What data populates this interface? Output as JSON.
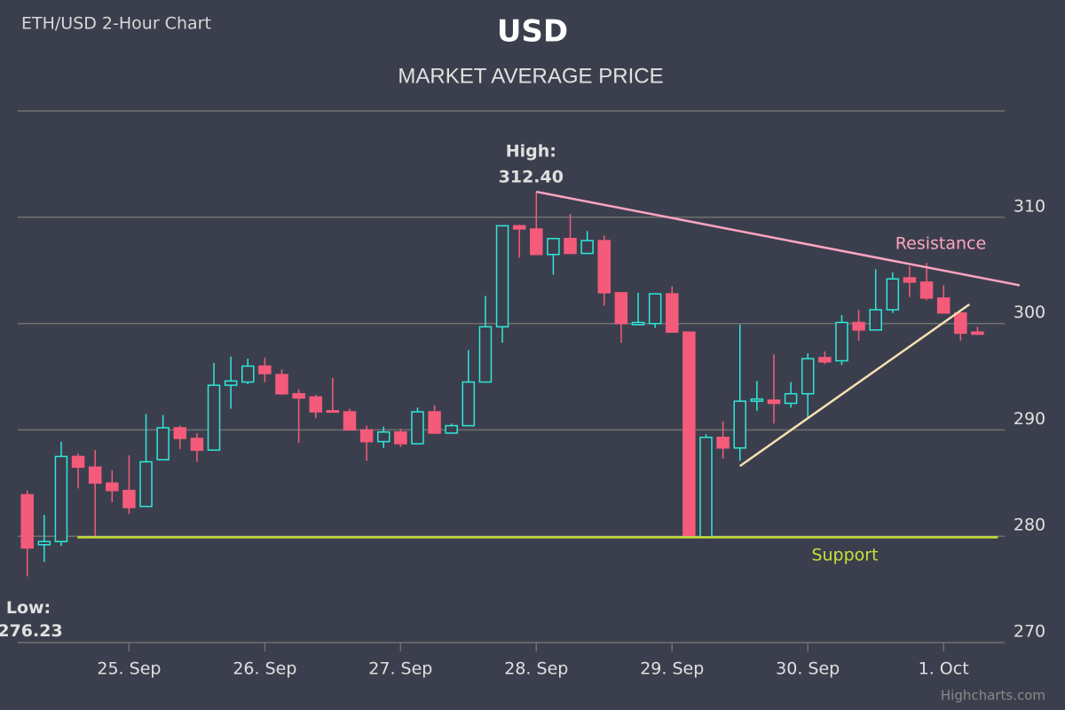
{
  "chart_data": {
    "type": "candlestick",
    "caption": "ETH/USD 2-Hour Chart",
    "title": "USD",
    "subtitle": "MARKET AVERAGE PRICE",
    "credits": "Highcharts.com",
    "up_color": "#2ee8d8",
    "down_color": "#f45b7a",
    "xlim": [
      24.18,
      31.45
    ],
    "xticks": [
      {
        "value": 25,
        "label": "25. Sep"
      },
      {
        "value": 26,
        "label": "26. Sep"
      },
      {
        "value": 27,
        "label": "27. Sep"
      },
      {
        "value": 28,
        "label": "28. Sep"
      },
      {
        "value": 29,
        "label": "29. Sep"
      },
      {
        "value": 30,
        "label": "30. Sep"
      },
      {
        "value": 31,
        "label": "1. Oct"
      }
    ],
    "ylim": [
      270,
      320
    ],
    "yticks": [
      270,
      280,
      290,
      300,
      310
    ],
    "grid": true,
    "x": [
      24.25,
      24.375,
      24.5,
      24.625,
      24.75,
      24.875,
      25,
      25.125,
      25.25,
      25.375,
      25.5,
      25.625,
      25.75,
      25.875,
      26,
      26.125,
      26.25,
      26.375,
      26.5,
      26.625,
      26.75,
      26.875,
      27,
      27.125,
      27.25,
      27.375,
      27.5,
      27.625,
      27.75,
      27.875,
      28,
      28.125,
      28.25,
      28.375,
      28.5,
      28.625,
      28.75,
      28.875,
      29,
      29.125,
      29.25,
      29.375,
      29.5,
      29.625,
      29.75,
      29.875,
      30,
      30.125,
      30.25,
      30.375,
      30.5,
      30.625,
      30.75,
      30.875,
      31,
      31.125,
      31.25
    ],
    "open": [
      283.9,
      279.2,
      279.5,
      287.5,
      286.5,
      285.0,
      284.3,
      282.8,
      287.2,
      290.2,
      289.2,
      288.1,
      294.2,
      294.5,
      296.0,
      295.2,
      293.4,
      293.1,
      291.8,
      291.7,
      290.0,
      288.9,
      289.8,
      288.7,
      291.7,
      289.7,
      290.4,
      294.5,
      299.7,
      309.2,
      308.9,
      306.5,
      308.0,
      306.6,
      307.8,
      302.9,
      299.9,
      300.0,
      302.8,
      299.2,
      279.9,
      289.3,
      288.3,
      292.7,
      292.8,
      292.5,
      293.4,
      296.8,
      296.5,
      300.1,
      299.4,
      301.3,
      304.3,
      303.9,
      302.4,
      301.0,
      299.2
    ],
    "high": [
      284.3,
      282.0,
      288.9,
      287.8,
      288.1,
      286.2,
      287.6,
      291.5,
      291.4,
      290.4,
      289.7,
      296.3,
      296.9,
      296.7,
      296.8,
      295.7,
      293.8,
      293.3,
      294.9,
      292.0,
      290.4,
      290.3,
      290.1,
      292.1,
      292.3,
      290.6,
      297.5,
      302.6,
      309.2,
      309.3,
      312.4,
      308.0,
      310.3,
      308.7,
      308.3,
      302.9,
      302.9,
      302.8,
      303.5,
      299.2,
      289.6,
      290.8,
      299.9,
      294.6,
      297.1,
      294.5,
      297.2,
      297.4,
      300.8,
      301.3,
      305.1,
      304.8,
      305.4,
      305.7,
      303.6,
      301.0,
      299.7
    ],
    "low": [
      276.23,
      277.6,
      279.1,
      284.5,
      280.0,
      283.2,
      282.1,
      282.8,
      287.2,
      288.2,
      287.0,
      288.1,
      292.0,
      294.3,
      294.5,
      293.3,
      288.8,
      291.1,
      291.7,
      290.0,
      287.1,
      288.3,
      288.4,
      288.7,
      289.6,
      289.7,
      290.4,
      294.5,
      298.2,
      306.2,
      306.5,
      304.6,
      306.6,
      306.6,
      301.7,
      298.2,
      299.9,
      299.6,
      299.2,
      279.9,
      279.9,
      287.3,
      287.1,
      291.8,
      290.6,
      292.1,
      291.1,
      296.2,
      296.1,
      298.4,
      299.4,
      301.0,
      302.5,
      302.2,
      301.0,
      298.4,
      299.0
    ],
    "close": [
      278.9,
      279.5,
      287.5,
      286.5,
      285.0,
      284.3,
      282.7,
      287.0,
      290.2,
      289.2,
      288.1,
      294.2,
      294.6,
      296.0,
      295.3,
      293.4,
      293.0,
      291.7,
      291.7,
      290.0,
      288.9,
      289.8,
      288.7,
      291.7,
      289.7,
      290.4,
      294.5,
      299.7,
      309.2,
      308.9,
      306.5,
      308.0,
      306.6,
      307.8,
      302.9,
      300.0,
      300.1,
      302.8,
      299.2,
      279.9,
      289.3,
      288.3,
      292.7,
      292.9,
      292.5,
      293.4,
      296.7,
      296.4,
      300.1,
      299.4,
      301.3,
      304.2,
      303.9,
      302.4,
      301.0,
      299.1,
      299.0
    ],
    "high_annotation": {
      "label": "High:",
      "value": 312.4,
      "value_label": "312.40",
      "x": 28.0
    },
    "low_annotation": {
      "label": "Low:",
      "value": 276.23
    },
    "lines": [
      {
        "label": "Resistance",
        "color": "#ffa5c0",
        "x": [
          28.0,
          31.56
        ],
        "y": [
          312.4,
          303.6
        ]
      },
      {
        "label": "Support",
        "color": "#c5e03a",
        "x": [
          24.62,
          31.4
        ],
        "y": [
          279.9,
          279.9
        ]
      },
      {
        "color": "#f5e0b0",
        "x": [
          29.5,
          31.19
        ],
        "y": [
          286.6,
          301.8
        ]
      }
    ]
  }
}
